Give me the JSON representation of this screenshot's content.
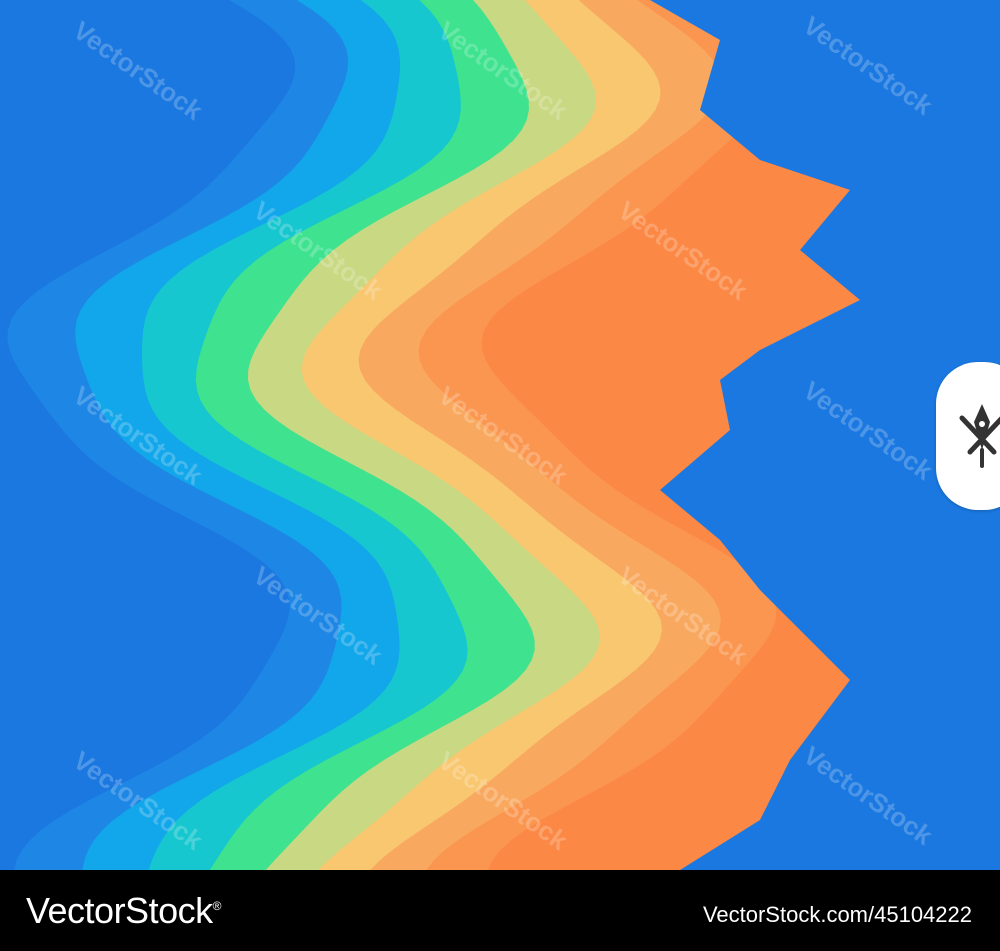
{
  "colors": {
    "background": "#1a78e0",
    "bands": [
      "#1e86e4",
      "#12a6ea",
      "#17c7cf",
      "#3ee28f",
      "#c9d882",
      "#f8c770",
      "#f9a95f",
      "#fb9650",
      "#fc8845"
    ],
    "footer": "#000000"
  },
  "watermark": {
    "text": "VectorStock"
  },
  "badge": {
    "icon": "pen-nib-crossed-swords-icon"
  },
  "footer": {
    "brand": "VectorStock",
    "brand_mark": "®",
    "image_id": "VectorStock.com/45104222"
  }
}
